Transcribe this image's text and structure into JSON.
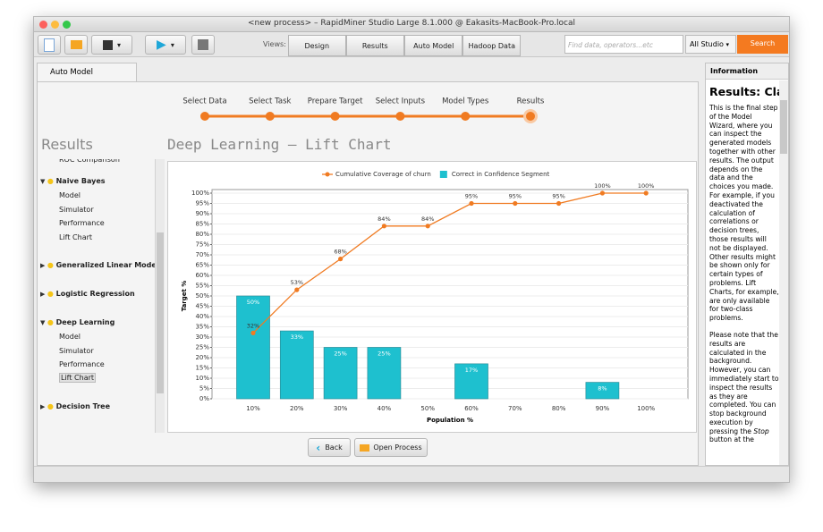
{
  "window": {
    "title": "<new process> – RapidMiner Studio Large 8.1.000 @ Eakasits-MacBook-Pro.local"
  },
  "toolbar": {
    "views_label": "Views:",
    "views": [
      "Design",
      "Results",
      "Auto Model",
      "Hadoop Data"
    ],
    "search_placeholder": "Find data, operators...etc",
    "scope": "All Studio",
    "search_button": "Search"
  },
  "tab": "Auto Model",
  "wizard_steps": [
    "Select Data",
    "Select Task",
    "Prepare Target",
    "Select Inputs",
    "Model Types",
    "Results"
  ],
  "sidebar": {
    "heading": "Results",
    "clipped_item": "ROC Comparison",
    "groups": [
      {
        "name": "Naive Bayes",
        "items": [
          "Model",
          "Simulator",
          "Performance",
          "Lift Chart"
        ]
      },
      {
        "name": "Generalized Linear Model",
        "items": []
      },
      {
        "name": "Logistic Regression",
        "items": []
      },
      {
        "name": "Deep Learning",
        "items": [
          "Model",
          "Simulator",
          "Performance",
          "Lift Chart"
        ]
      },
      {
        "name": "Decision Tree",
        "items": []
      }
    ]
  },
  "main_title": "Deep Learning – Lift Chart",
  "chart_data": {
    "type": "bar",
    "x_label": "Population %",
    "y_label": "Target %",
    "categories": [
      "10%",
      "20%",
      "30%",
      "40%",
      "50%",
      "60%",
      "70%",
      "80%",
      "90%",
      "100%"
    ],
    "ylim": [
      0,
      100
    ],
    "yticks": [
      {
        "value": 0,
        "label": "0%"
      },
      {
        "value": 5,
        "label": "5%"
      },
      {
        "value": 10,
        "label": "10%"
      },
      {
        "value": 15,
        "label": "15%"
      },
      {
        "value": 20,
        "label": "20%"
      },
      {
        "value": 25,
        "label": "25%"
      },
      {
        "value": 30,
        "label": "30%"
      },
      {
        "value": 35,
        "label": "35%"
      },
      {
        "value": 40,
        "label": "40%"
      },
      {
        "value": 45,
        "label": "45%"
      },
      {
        "value": 50,
        "label": "50%"
      },
      {
        "value": 55,
        "label": "55%"
      },
      {
        "value": 60,
        "label": "60%"
      },
      {
        "value": 65,
        "label": "65%"
      },
      {
        "value": 70,
        "label": "70%"
      },
      {
        "value": 75,
        "label": "75%"
      },
      {
        "value": 80,
        "label": "80%"
      },
      {
        "value": 85,
        "label": "85%"
      },
      {
        "value": 90,
        "label": "90%"
      },
      {
        "value": 95,
        "label": "95%"
      },
      {
        "value": 100,
        "label": "100%"
      }
    ],
    "grid": true,
    "series": [
      {
        "name": "Cumulative Coverage of churn",
        "type": "line",
        "color": "#f07b22",
        "values": [
          32,
          53,
          68,
          84,
          84,
          95,
          95,
          95,
          100,
          100
        ],
        "value_labels": [
          "32%",
          "53%",
          "68%",
          "84%",
          "84%",
          "95%",
          "95%",
          "95%",
          "100%",
          "100%"
        ]
      },
      {
        "name": "Correct in Confidence Segment",
        "type": "bar",
        "color": "#1ec0cf",
        "values": [
          50,
          33,
          25,
          25,
          null,
          17,
          null,
          null,
          8,
          null
        ],
        "value_labels": [
          "50%",
          "33%",
          "25%",
          "25%",
          null,
          "17%",
          null,
          null,
          "8%",
          null
        ]
      }
    ]
  },
  "buttons": {
    "back": "Back",
    "open_process": "Open Process"
  },
  "info_panel": {
    "title": "Information",
    "heading": "Results: Classification",
    "paragraph1": "This is the final step of the Model Wizard, where you can inspect the generated models together with other results. The output depends on the data and the choices you made. For example, if you deactivated the calculation of correlations or decision trees, those results will not be displayed. Other results might be shown only for certain types of problems. Lift Charts, for example, are only available for two-class problems.",
    "paragraph2": [
      "Please note that the results are calculated in the background. However, you can immediately start to inspect the results as they are completed. You can stop background execution by pressing the ",
      "Stop",
      " button at the"
    ]
  }
}
